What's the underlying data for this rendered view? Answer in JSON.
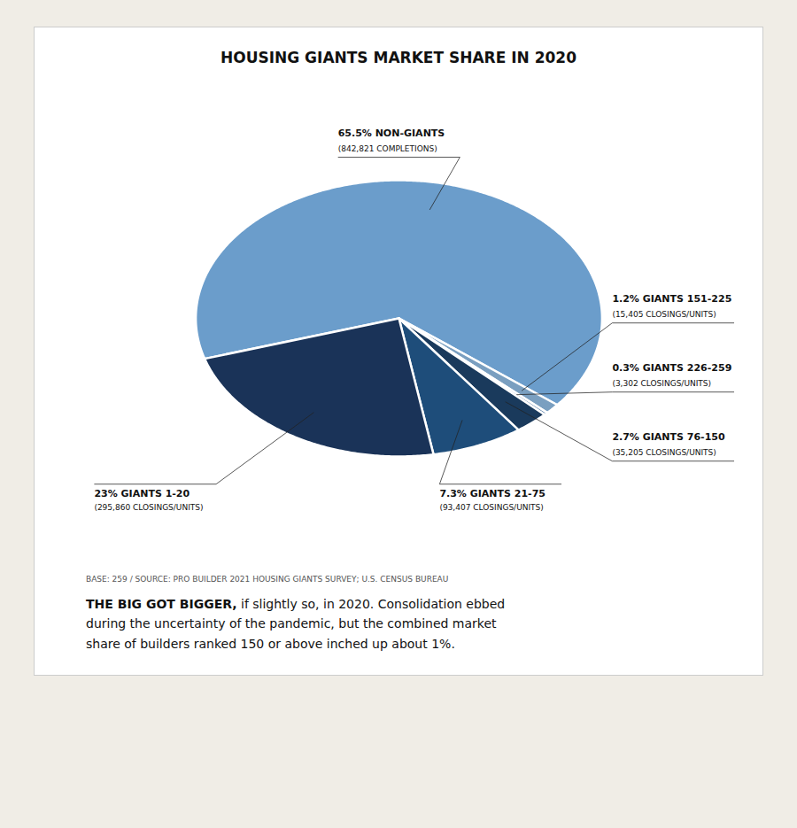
{
  "chart_data": {
    "type": "pie",
    "title": "HOUSING GIANTS MARKET SHARE IN 2020",
    "values": [
      65.5,
      1.2,
      0.3,
      2.7,
      7.3,
      23.0
    ],
    "colors": [
      "#6b9dcb",
      "#7a9fc0",
      "#5a7fa8",
      "#1a3a5c",
      "#1e4d7a",
      "#1a3358"
    ],
    "value_labels": [
      "65.5% NON-GIANTS",
      "1.2% GIANTS 151-225",
      "0.3% GIANTS 226-259",
      "2.7% GIANTS 76-150",
      "7.3% GIANTS 21-75",
      "23% GIANTS 1-20"
    ],
    "sub_labels": [
      "(842,821 COMPLETIONS)",
      "(15,405 CLOSINGS/UNITS)",
      "(3,302 CLOSINGS/UNITS)",
      "(35,205 CLOSINGS/UNITS)",
      "(93,407 CLOSINGS/UNITS)",
      "(295,860 CLOSINGS/UNITS)"
    ],
    "source": "BASE: 259 / SOURCE: PRO BUILDER 2021 HOUSING GIANTS SURVEY; U.S. CENSUS BUREAU",
    "body_bold": "THE BIG GOT BIGGER,",
    "body": [
      " if slightly so, in 2020. Consolidation ebbed",
      "during the uncertainty of the pandemic, but the combined market",
      "share of builders ranked 150 or above inched up about 1%."
    ]
  }
}
